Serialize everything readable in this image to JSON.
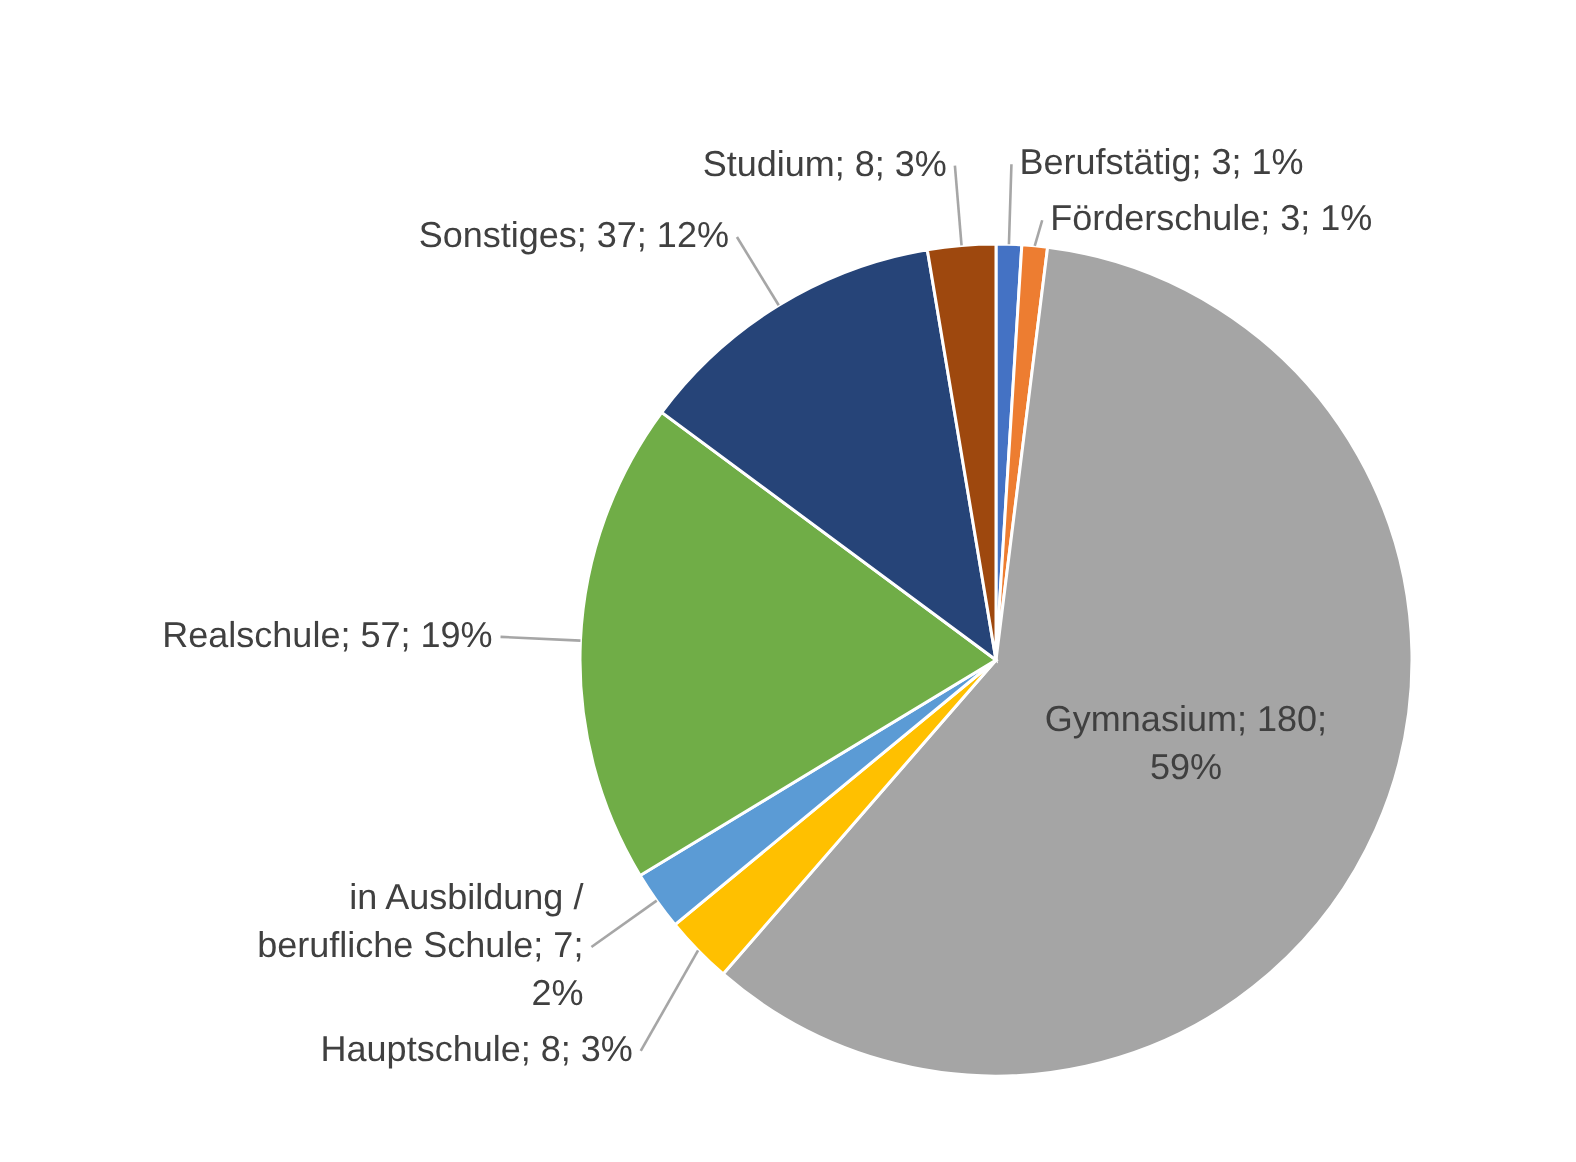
{
  "chart_data": {
    "type": "pie",
    "categories": [
      "Berufstätig",
      "Förderschule",
      "Gymnasium",
      "Hauptschule",
      "in Ausbildung / berufliche Schule",
      "Realschule",
      "Sonstiges",
      "Studium"
    ],
    "values": [
      3,
      3,
      180,
      8,
      7,
      57,
      37,
      8
    ],
    "value_labels": [
      "3; 1%",
      "3; 1%",
      "180; 59%",
      "8; 3%",
      "7; 2%",
      "57; 19%",
      "37; 12%",
      "8; 3%"
    ],
    "colors": [
      "#4472c4",
      "#ed7d31",
      "#a5a5a5",
      "#ffc000",
      "#5b9bd5",
      "#70ad47",
      "#264478",
      "#9e480e"
    ]
  }
}
